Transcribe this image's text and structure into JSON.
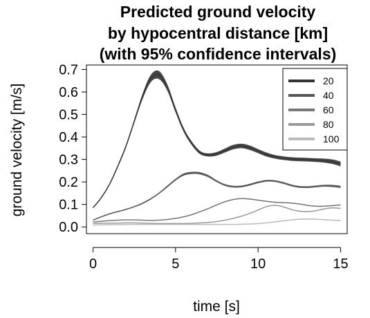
{
  "chart_data": {
    "type": "line",
    "title_lines": [
      "Predicted ground velocity",
      "by hypocentral distance [km]",
      "(with 95% confidence intervals)"
    ],
    "xlabel": "time [s]",
    "ylabel": "ground velocity [m/s]",
    "xlim": [
      -0.4,
      15.4
    ],
    "ylim": [
      -0.03,
      0.72
    ],
    "xticks": [
      0,
      5,
      10,
      15
    ],
    "yticks": [
      0.0,
      0.1,
      0.2,
      0.3,
      0.4,
      0.5,
      0.6,
      0.7
    ],
    "ytick_labels": [
      "0.0",
      "0.1",
      "0.2",
      "0.3",
      "0.4",
      "0.5",
      "0.6",
      "0.7"
    ],
    "grid": false,
    "legend_position": "top-right",
    "series": [
      {
        "name": "20",
        "color": "#333333",
        "x": [
          0,
          0.5,
          1,
          1.5,
          2,
          2.5,
          3,
          3.5,
          4,
          4.5,
          5,
          5.5,
          6,
          6.5,
          7,
          7.5,
          8,
          8.5,
          9,
          9.5,
          10,
          10.5,
          11,
          11.5,
          12,
          12.5,
          13,
          13.5,
          14,
          14.5,
          15
        ],
        "y": [
          0.085,
          0.13,
          0.19,
          0.27,
          0.36,
          0.47,
          0.58,
          0.66,
          0.675,
          0.62,
          0.52,
          0.43,
          0.37,
          0.33,
          0.32,
          0.325,
          0.34,
          0.355,
          0.36,
          0.352,
          0.337,
          0.322,
          0.312,
          0.306,
          0.302,
          0.3,
          0.299,
          0.297,
          0.295,
          0.29,
          0.28
        ],
        "ci_halfwidth": [
          0.002,
          0.003,
          0.004,
          0.005,
          0.006,
          0.008,
          0.012,
          0.016,
          0.018,
          0.014,
          0.011,
          0.009,
          0.008,
          0.007,
          0.007,
          0.008,
          0.009,
          0.01,
          0.01,
          0.01,
          0.009,
          0.009,
          0.008,
          0.008,
          0.008,
          0.008,
          0.008,
          0.008,
          0.009,
          0.01,
          0.011
        ]
      },
      {
        "name": "40",
        "color": "#555555",
        "x": [
          0,
          0.5,
          1,
          1.5,
          2,
          2.5,
          3,
          3.5,
          4,
          4.5,
          5,
          5.5,
          6,
          6.5,
          7,
          7.5,
          8,
          8.5,
          9,
          9.5,
          10,
          10.5,
          11,
          11.5,
          12,
          12.5,
          13,
          13.5,
          14,
          14.5,
          15
        ],
        "y": [
          0.03,
          0.045,
          0.058,
          0.068,
          0.078,
          0.09,
          0.105,
          0.125,
          0.15,
          0.18,
          0.21,
          0.233,
          0.24,
          0.238,
          0.225,
          0.203,
          0.186,
          0.179,
          0.18,
          0.188,
          0.198,
          0.205,
          0.204,
          0.196,
          0.185,
          0.178,
          0.177,
          0.18,
          0.183,
          0.182,
          0.178
        ],
        "ci_halfwidth": [
          0.002,
          0.002,
          0.002,
          0.002,
          0.002,
          0.002,
          0.003,
          0.003,
          0.003,
          0.004,
          0.004,
          0.005,
          0.005,
          0.005,
          0.005,
          0.004,
          0.004,
          0.004,
          0.004,
          0.004,
          0.004,
          0.004,
          0.004,
          0.004,
          0.004,
          0.004,
          0.004,
          0.004,
          0.004,
          0.005,
          0.005
        ]
      },
      {
        "name": "60",
        "color": "#777777",
        "x": [
          0,
          0.5,
          1,
          1.5,
          2,
          2.5,
          3,
          3.5,
          4,
          4.5,
          5,
          5.5,
          6,
          6.5,
          7,
          7.5,
          8,
          8.5,
          9,
          9.5,
          10,
          10.5,
          11,
          11.5,
          12,
          12.5,
          13,
          13.5,
          14,
          14.5,
          15
        ],
        "y": [
          0.022,
          0.025,
          0.028,
          0.03,
          0.031,
          0.031,
          0.03,
          0.029,
          0.03,
          0.033,
          0.038,
          0.045,
          0.055,
          0.068,
          0.082,
          0.098,
          0.112,
          0.122,
          0.126,
          0.124,
          0.119,
          0.114,
          0.11,
          0.108,
          0.106,
          0.102,
          0.096,
          0.092,
          0.092,
          0.095,
          0.098
        ],
        "ci_halfwidth": [
          0.001,
          0.001,
          0.001,
          0.001,
          0.001,
          0.001,
          0.001,
          0.001,
          0.001,
          0.001,
          0.001,
          0.002,
          0.002,
          0.002,
          0.002,
          0.002,
          0.002,
          0.002,
          0.002,
          0.002,
          0.002,
          0.002,
          0.002,
          0.002,
          0.002,
          0.002,
          0.002,
          0.002,
          0.002,
          0.002,
          0.002
        ]
      },
      {
        "name": "80",
        "color": "#999999",
        "x": [
          0,
          0.5,
          1,
          1.5,
          2,
          2.5,
          3,
          3.5,
          4,
          4.5,
          5,
          5.5,
          6,
          6.5,
          7,
          7.5,
          8,
          8.5,
          9,
          9.5,
          10,
          10.5,
          11,
          11.5,
          12,
          12.5,
          13,
          13.5,
          14,
          14.5,
          15
        ],
        "y": [
          0.015,
          0.016,
          0.017,
          0.017,
          0.018,
          0.018,
          0.017,
          0.016,
          0.015,
          0.015,
          0.015,
          0.015,
          0.016,
          0.018,
          0.02,
          0.024,
          0.03,
          0.038,
          0.048,
          0.06,
          0.075,
          0.09,
          0.096,
          0.09,
          0.078,
          0.07,
          0.068,
          0.072,
          0.08,
          0.085,
          0.082
        ],
        "ci_halfwidth": [
          0.001,
          0.001,
          0.001,
          0.001,
          0.001,
          0.001,
          0.001,
          0.001,
          0.001,
          0.001,
          0.001,
          0.001,
          0.001,
          0.001,
          0.001,
          0.001,
          0.001,
          0.001,
          0.001,
          0.001,
          0.001,
          0.002,
          0.002,
          0.002,
          0.002,
          0.002,
          0.002,
          0.002,
          0.002,
          0.002,
          0.002
        ]
      },
      {
        "name": "100",
        "color": "#bbbbbb",
        "x": [
          0,
          0.5,
          1,
          1.5,
          2,
          2.5,
          3,
          3.5,
          4,
          4.5,
          5,
          5.5,
          6,
          6.5,
          7,
          7.5,
          8,
          8.5,
          9,
          9.5,
          10,
          10.5,
          11,
          11.5,
          12,
          12.5,
          13,
          13.5,
          14,
          14.5,
          15
        ],
        "y": [
          0.008,
          0.009,
          0.01,
          0.01,
          0.011,
          0.011,
          0.011,
          0.011,
          0.011,
          0.011,
          0.011,
          0.011,
          0.011,
          0.011,
          0.011,
          0.011,
          0.011,
          0.011,
          0.012,
          0.013,
          0.015,
          0.018,
          0.022,
          0.027,
          0.031,
          0.034,
          0.035,
          0.034,
          0.032,
          0.03,
          0.028
        ],
        "ci_halfwidth": [
          0.001,
          0.001,
          0.001,
          0.001,
          0.001,
          0.001,
          0.001,
          0.001,
          0.001,
          0.001,
          0.001,
          0.001,
          0.001,
          0.001,
          0.001,
          0.001,
          0.001,
          0.001,
          0.001,
          0.001,
          0.001,
          0.001,
          0.002,
          0.002,
          0.002,
          0.002,
          0.002,
          0.002,
          0.002,
          0.002,
          0.002
        ]
      }
    ]
  }
}
